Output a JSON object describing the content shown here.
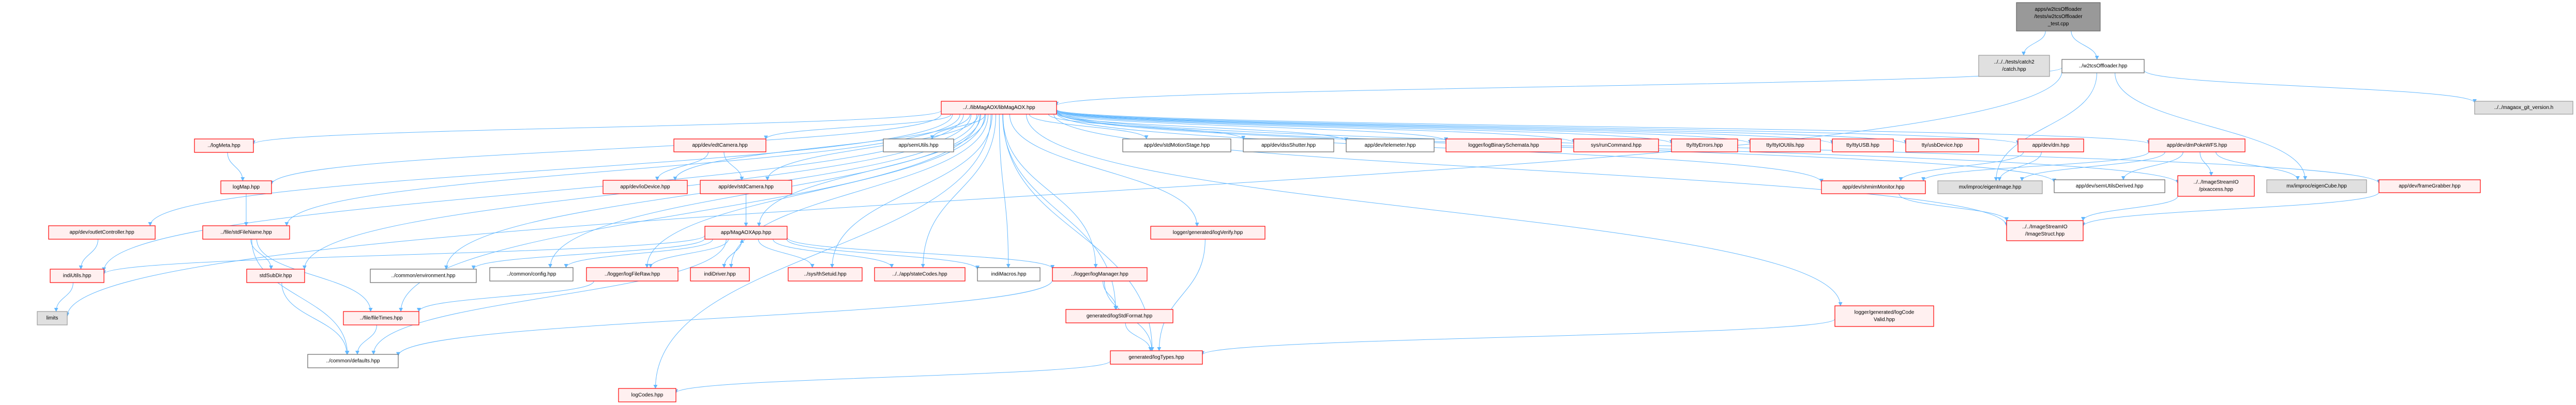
{
  "colors": {
    "edge": "#63b8ff",
    "red_border": "#ff0000",
    "red_fill": "#fff0f0",
    "root_fill": "#999999",
    "gray_fill": "#e0e0e0"
  },
  "nodes": [
    {
      "id": "root",
      "label": [
        "apps/w2tcsOffloader",
        "/tests/w2tcsOffloader",
        "_test.cpp"
      ],
      "style": "root"
    },
    {
      "id": "catch",
      "label": [
        "../../../tests/catch2",
        "/catch.hpp"
      ],
      "style": "gray"
    },
    {
      "id": "offloader",
      "label": [
        "../w2tcsOffloader.hpp"
      ],
      "style": "white"
    },
    {
      "id": "libmagaox",
      "label": [
        "../../libMagAOX/libMagAOX.hpp"
      ],
      "style": "red"
    },
    {
      "id": "gitver",
      "label": [
        "../../magaox_git_version.h"
      ],
      "style": "gray"
    },
    {
      "id": "logmeta",
      "label": [
        "../logMeta.hpp"
      ],
      "style": "red"
    },
    {
      "id": "logmap",
      "label": [
        "logMap.hpp"
      ],
      "style": "red"
    },
    {
      "id": "outlet",
      "label": [
        "app/dev/outletController.hpp"
      ],
      "style": "red"
    },
    {
      "id": "stdfilename",
      "label": [
        "../file/stdFileName.hpp"
      ],
      "style": "red"
    },
    {
      "id": "indiutils",
      "label": [
        "indiUtils.hpp"
      ],
      "style": "red"
    },
    {
      "id": "limits",
      "label": [
        "limits"
      ],
      "style": "gray"
    },
    {
      "id": "stdsubdir",
      "label": [
        "stdSubDir.hpp"
      ],
      "style": "red"
    },
    {
      "id": "filetimes",
      "label": [
        "../file/fileTimes.hpp"
      ],
      "style": "red"
    },
    {
      "id": "defaults",
      "label": [
        "../common/defaults.hpp"
      ],
      "style": "white"
    },
    {
      "id": "environment",
      "label": [
        "../common/environment.hpp"
      ],
      "style": "white"
    },
    {
      "id": "config",
      "label": [
        "../common/config.hpp"
      ],
      "style": "white"
    },
    {
      "id": "edtcamera",
      "label": [
        "app/dev/edtCamera.hpp"
      ],
      "style": "red"
    },
    {
      "id": "iodevice",
      "label": [
        "app/dev/ioDevice.hpp"
      ],
      "style": "red"
    },
    {
      "id": "stdcamera",
      "label": [
        "app/dev/stdCamera.hpp"
      ],
      "style": "red"
    },
    {
      "id": "semutils",
      "label": [
        "app/semUtils.hpp"
      ],
      "style": "white"
    },
    {
      "id": "magaoxapp",
      "label": [
        "app/MagAOXApp.hpp"
      ],
      "style": "red"
    },
    {
      "id": "logfileraw",
      "label": [
        "../logger/logFileRaw.hpp"
      ],
      "style": "red"
    },
    {
      "id": "indidriver",
      "label": [
        "indiDriver.hpp"
      ],
      "style": "red"
    },
    {
      "id": "thsetuid",
      "label": [
        "../sys/thSetuid.hpp"
      ],
      "style": "red"
    },
    {
      "id": "statecodes",
      "label": [
        "../../app/stateCodes.hpp"
      ],
      "style": "red"
    },
    {
      "id": "indimacros",
      "label": [
        "indiMacros.hpp"
      ],
      "style": "white"
    },
    {
      "id": "logcodes",
      "label": [
        "logCodes.hpp"
      ],
      "style": "red"
    },
    {
      "id": "motionstage",
      "label": [
        "app/dev/stdMotionStage.hpp"
      ],
      "style": "white"
    },
    {
      "id": "dssshutter",
      "label": [
        "app/dev/dssShutter.hpp"
      ],
      "style": "white"
    },
    {
      "id": "telemeter",
      "label": [
        "app/dev/telemeter.hpp"
      ],
      "style": "white"
    },
    {
      "id": "binschemata",
      "label": [
        "logger/logBinarySchemata.hpp"
      ],
      "style": "red"
    },
    {
      "id": "runcommand",
      "label": [
        "sys/runCommand.hpp"
      ],
      "style": "red"
    },
    {
      "id": "ttyerrors",
      "label": [
        "tty/ttyErrors.hpp"
      ],
      "style": "red"
    },
    {
      "id": "ttyioutils",
      "label": [
        "tty/ttyIOUtils.hpp"
      ],
      "style": "red"
    },
    {
      "id": "ttyusb",
      "label": [
        "tty/ttyUSB.hpp"
      ],
      "style": "red"
    },
    {
      "id": "usbdevice",
      "label": [
        "tty/usbDevice.hpp"
      ],
      "style": "red"
    },
    {
      "id": "dm",
      "label": [
        "app/dev/dm.hpp"
      ],
      "style": "red"
    },
    {
      "id": "dmpoke",
      "label": [
        "app/dev/dmPokeWFS.hpp"
      ],
      "style": "red"
    },
    {
      "id": "logverify",
      "label": [
        "logger/generated/logVerify.hpp"
      ],
      "style": "red"
    },
    {
      "id": "logmanager",
      "label": [
        "../logger/logManager.hpp"
      ],
      "style": "red"
    },
    {
      "id": "logstdformat",
      "label": [
        "generated/logStdFormat.hpp"
      ],
      "style": "red"
    },
    {
      "id": "logtypes",
      "label": [
        "generated/logTypes.hpp"
      ],
      "style": "red"
    },
    {
      "id": "shmimmonitor",
      "label": [
        "app/dev/shmimMonitor.hpp"
      ],
      "style": "red"
    },
    {
      "id": "eigenimage",
      "label": [
        "mx/improc/eigenImage.hpp"
      ],
      "style": "gray"
    },
    {
      "id": "semutilsderived",
      "label": [
        "app/dev/semUtilsDerived.hpp"
      ],
      "style": "white"
    },
    {
      "id": "pixaccess",
      "label": [
        "../../ImageStreamIO",
        "/pixaccess.hpp"
      ],
      "style": "red"
    },
    {
      "id": "eigencube",
      "label": [
        "mx/improc/eigenCube.hpp"
      ],
      "style": "gray"
    },
    {
      "id": "framegrabber",
      "label": [
        "app/dev/frameGrabber.hpp"
      ],
      "style": "red"
    },
    {
      "id": "imagestruct",
      "label": [
        "../../ImageStreamIO",
        "/ImageStruct.hpp"
      ],
      "style": "red"
    },
    {
      "id": "logcodevalid",
      "label": [
        "logger/generated/logCode",
        "Valid.hpp"
      ],
      "style": "red"
    }
  ],
  "edges": [
    [
      "root",
      "catch"
    ],
    [
      "root",
      "offloader"
    ],
    [
      "offloader",
      "libmagaox"
    ],
    [
      "offloader",
      "gitver"
    ],
    [
      "offloader",
      "eigenimage"
    ],
    [
      "offloader",
      "eigencube"
    ],
    [
      "offloader",
      "limits"
    ],
    [
      "libmagaox",
      "logmeta"
    ],
    [
      "libmagaox",
      "logmap"
    ],
    [
      "libmagaox",
      "stdfilename"
    ],
    [
      "libmagaox",
      "outlet"
    ],
    [
      "libmagaox",
      "indiutils"
    ],
    [
      "libmagaox",
      "edtcamera"
    ],
    [
      "libmagaox",
      "iodevice"
    ],
    [
      "libmagaox",
      "stdcamera"
    ],
    [
      "libmagaox",
      "semutils"
    ],
    [
      "libmagaox",
      "motionstage"
    ],
    [
      "libmagaox",
      "dssshutter"
    ],
    [
      "libmagaox",
      "telemeter"
    ],
    [
      "libmagaox",
      "binschemata"
    ],
    [
      "libmagaox",
      "runcommand"
    ],
    [
      "libmagaox",
      "ttyerrors"
    ],
    [
      "libmagaox",
      "ttyioutils"
    ],
    [
      "libmagaox",
      "ttyusb"
    ],
    [
      "libmagaox",
      "usbdevice"
    ],
    [
      "libmagaox",
      "dm"
    ],
    [
      "libmagaox",
      "dmpoke"
    ],
    [
      "libmagaox",
      "shmimmonitor"
    ],
    [
      "libmagaox",
      "framegrabber"
    ],
    [
      "libmagaox",
      "semutilsderived"
    ],
    [
      "libmagaox",
      "pixaccess"
    ],
    [
      "libmagaox",
      "imagestruct"
    ],
    [
      "libmagaox",
      "magaoxapp"
    ],
    [
      "libmagaox",
      "environment"
    ],
    [
      "libmagaox",
      "config"
    ],
    [
      "libmagaox",
      "filetimes"
    ],
    [
      "libmagaox",
      "logfileraw"
    ],
    [
      "libmagaox",
      "indidriver"
    ],
    [
      "libmagaox",
      "thsetuid"
    ],
    [
      "libmagaox",
      "statecodes"
    ],
    [
      "libmagaox",
      "indimacros"
    ],
    [
      "libmagaox",
      "logmanager"
    ],
    [
      "libmagaox",
      "logstdformat"
    ],
    [
      "libmagaox",
      "logtypes"
    ],
    [
      "libmagaox",
      "logverify"
    ],
    [
      "libmagaox",
      "logcodevalid"
    ],
    [
      "libmagaox",
      "stdsubdir"
    ],
    [
      "libmagaox",
      "logcodes"
    ],
    [
      "logmeta",
      "logmap"
    ],
    [
      "logmap",
      "stdfilename"
    ],
    [
      "stdfilename",
      "stdsubdir"
    ],
    [
      "stdfilename",
      "filetimes"
    ],
    [
      "stdfilename",
      "defaults"
    ],
    [
      "stdsubdir",
      "defaults"
    ],
    [
      "filetimes",
      "defaults"
    ],
    [
      "outlet",
      "indiutils"
    ],
    [
      "indiutils",
      "limits"
    ],
    [
      "edtcamera",
      "iodevice"
    ],
    [
      "edtcamera",
      "stdcamera"
    ],
    [
      "stdcamera",
      "magaoxapp"
    ],
    [
      "magaoxapp",
      "indiutils"
    ],
    [
      "magaoxapp",
      "config"
    ],
    [
      "magaoxapp",
      "environment"
    ],
    [
      "magaoxapp",
      "logfileraw"
    ],
    [
      "magaoxapp",
      "indidriver"
    ],
    [
      "magaoxapp",
      "thsetuid"
    ],
    [
      "magaoxapp",
      "statecodes"
    ],
    [
      "magaoxapp",
      "indimacros"
    ],
    [
      "magaoxapp",
      "logmanager"
    ],
    [
      "magaoxapp",
      "defaults"
    ],
    [
      "indidriver",
      "magaoxapp"
    ],
    [
      "logfileraw",
      "filetimes"
    ],
    [
      "logmanager",
      "logstdformat"
    ],
    [
      "logmanager",
      "logtypes"
    ],
    [
      "logmanager",
      "defaults"
    ],
    [
      "logstdformat",
      "logtypes"
    ],
    [
      "logverify",
      "logtypes"
    ],
    [
      "logcodevalid",
      "logtypes"
    ],
    [
      "logtypes",
      "logcodes"
    ],
    [
      "dm",
      "shmimmonitor"
    ],
    [
      "dm",
      "eigenimage"
    ],
    [
      "dmpoke",
      "shmimmonitor"
    ],
    [
      "dmpoke",
      "semutilsderived"
    ],
    [
      "dmpoke",
      "pixaccess"
    ],
    [
      "dmpoke",
      "eigencube"
    ],
    [
      "dmpoke",
      "eigenimage"
    ],
    [
      "shmimmonitor",
      "imagestruct"
    ],
    [
      "pixaccess",
      "imagestruct"
    ],
    [
      "framegrabber",
      "imagestruct"
    ]
  ]
}
